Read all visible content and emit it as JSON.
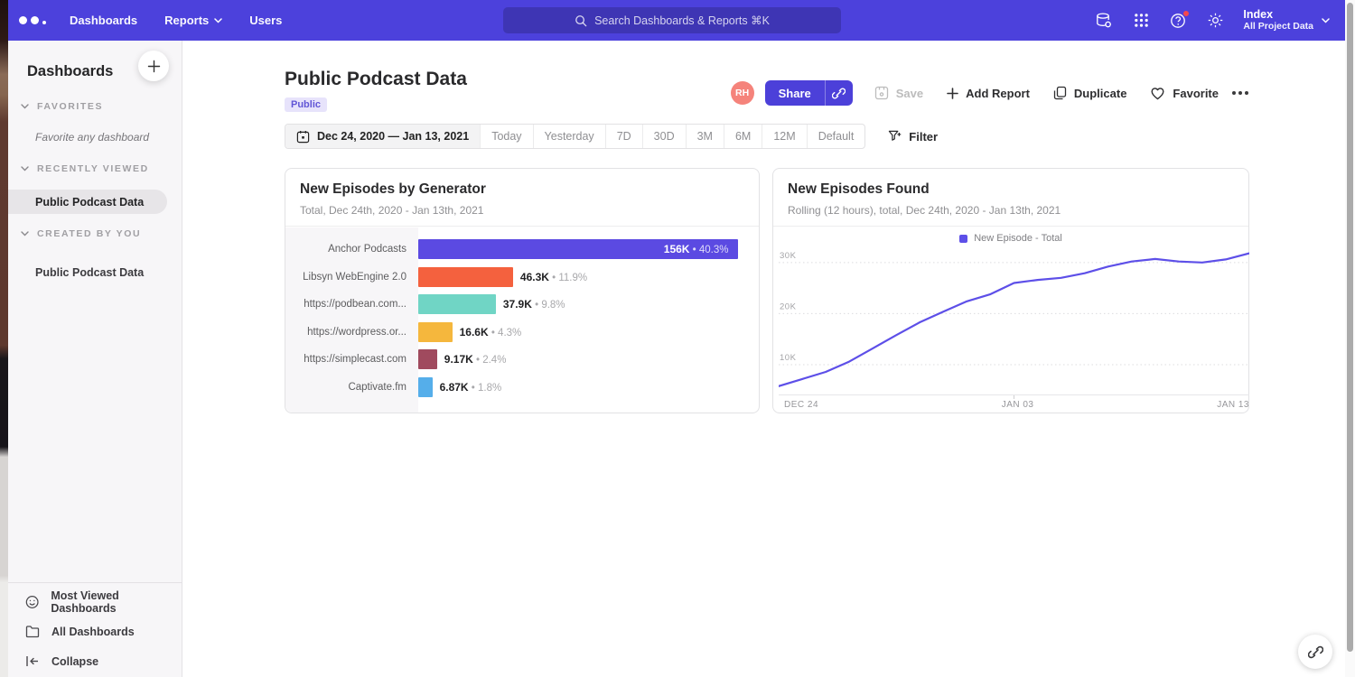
{
  "nav": {
    "items": [
      "Dashboards",
      "Reports",
      "Users"
    ],
    "search_placeholder": "Search Dashboards & Reports ⌘K",
    "project": {
      "name": "Index",
      "subtitle": "All Project Data"
    },
    "icons": [
      "data-icon",
      "apps-grid-icon",
      "help-icon",
      "gear-icon"
    ]
  },
  "sidebar": {
    "title": "Dashboards",
    "sections": [
      {
        "label": "FAVORITES",
        "empty_text": "Favorite any dashboard"
      },
      {
        "label": "RECENTLY VIEWED",
        "items": [
          {
            "label": "Public Podcast Data",
            "active": true
          }
        ]
      },
      {
        "label": "CREATED BY YOU",
        "items": [
          {
            "label": "Public Podcast Data",
            "active": false
          }
        ]
      }
    ],
    "footer": [
      {
        "label": "Most Viewed Dashboards",
        "icon": "smiley-icon"
      },
      {
        "label": "All Dashboards",
        "icon": "folder-icon"
      },
      {
        "label": "Collapse",
        "icon": "collapse-icon"
      }
    ]
  },
  "header": {
    "title": "Public Podcast Data",
    "badge": "Public",
    "avatar": "RH",
    "share_label": "Share",
    "save_label": "Save",
    "add_report_label": "Add Report",
    "duplicate_label": "Duplicate",
    "favorite_label": "Favorite"
  },
  "datebar": {
    "range": "Dec 24, 2020 — Jan 13, 2021",
    "presets": [
      "Today",
      "Yesterday",
      "7D",
      "30D",
      "3M",
      "6M",
      "12M",
      "Default"
    ],
    "filter_label": "Filter"
  },
  "colors": {
    "accent": "#4c41dc",
    "nav": "#4c41dc",
    "badge_bg": "#e7e3fb"
  },
  "chart_data": [
    {
      "type": "bar",
      "orientation": "horizontal",
      "title": "New Episodes by Generator",
      "subtitle": "Total, Dec 24th, 2020 - Jan 13th, 2021",
      "categories": [
        "Anchor Podcasts",
        "Libsyn WebEngine 2.0",
        "https://podbean.com...",
        "https://wordpress.or...",
        "https://simplecast.com",
        "Captivate.fm"
      ],
      "values": [
        156000,
        46300,
        37900,
        16600,
        9170,
        6870
      ],
      "value_labels": [
        "156K",
        "46.3K",
        "37.9K",
        "16.6K",
        "9.17K",
        "6.87K"
      ],
      "pct_labels": [
        "40.3%",
        "11.9%",
        "9.8%",
        "4.3%",
        "2.4%",
        "1.8%"
      ],
      "colors": [
        "#5b4ae2",
        "#f4613e",
        "#70d5c5",
        "#f5b73d",
        "#a04a5e",
        "#55aeea"
      ]
    },
    {
      "type": "line",
      "title": "New Episodes Found",
      "subtitle": "Rolling (12 hours), total, Dec 24th, 2020 - Jan 13th, 2021",
      "series": [
        {
          "name": "New Episode - Total",
          "color": "#5d4fe8",
          "values": [
            5800,
            7200,
            8600,
            10600,
            13200,
            15800,
            18300,
            20400,
            22400,
            23800,
            26000,
            26600,
            27000,
            27900,
            29200,
            30200,
            30700,
            30200,
            30000,
            30600,
            31800
          ]
        }
      ],
      "x": [
        "Dec 24",
        "Dec 25",
        "Dec 26",
        "Dec 27",
        "Dec 28",
        "Dec 29",
        "Dec 30",
        "Dec 31",
        "Jan 01",
        "Jan 02",
        "Jan 03",
        "Jan 04",
        "Jan 05",
        "Jan 06",
        "Jan 07",
        "Jan 08",
        "Jan 09",
        "Jan 10",
        "Jan 11",
        "Jan 12",
        "Jan 13"
      ],
      "x_ticks": [
        "DEC 24",
        "JAN 03",
        "JAN 13"
      ],
      "y_ticks": [
        "10K",
        "20K",
        "30K"
      ],
      "y_tick_values": [
        10000,
        20000,
        30000
      ],
      "ylim": [
        4000,
        33500
      ],
      "legend_position": "top",
      "grid": "dotted-horizontal"
    }
  ]
}
